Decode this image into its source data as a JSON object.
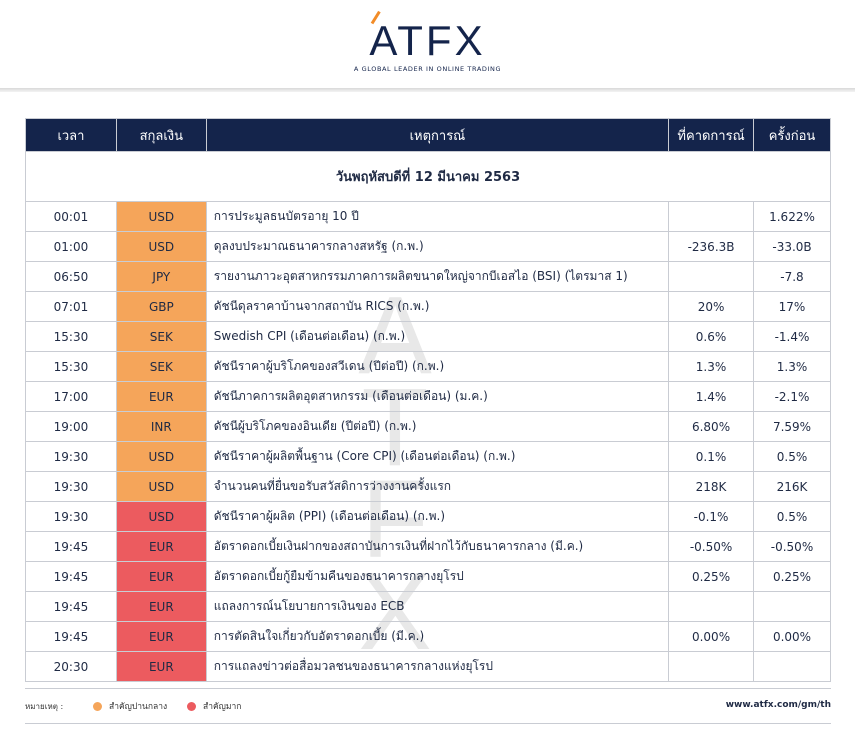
{
  "brand": {
    "logo_text": "ATFX",
    "tagline": "A GLOBAL LEADER IN ONLINE TRADING",
    "accent_color": "#f28c28",
    "navy_color": "#14244b"
  },
  "table": {
    "headers": [
      "เวลา",
      "สกุลเงิน",
      "เหตุการณ์",
      "ที่คาดการณ์",
      "ครั้งก่อน"
    ],
    "date_label": "วันพฤหัสบดีที่ 12 มีนาคม 2563",
    "rows": [
      {
        "time": "00:01",
        "currency": "USD",
        "event": "การประมูลธนบัตรอายุ 10 ปี",
        "forecast": "",
        "previous": "1.622%",
        "importance": "medium"
      },
      {
        "time": "01:00",
        "currency": "USD",
        "event": "ดุลงบประมาณธนาคารกลางสหรัฐ (ก.พ.)",
        "forecast": "-236.3B",
        "previous": "-33.0B",
        "importance": "medium"
      },
      {
        "time": "06:50",
        "currency": "JPY",
        "event": "รายงานภาวะอุตสาหกรรมภาคการผลิตขนาดใหญ่จากบีเอสไอ (BSI) (ไตรมาส 1)",
        "forecast": "",
        "previous": "-7.8",
        "importance": "medium"
      },
      {
        "time": "07:01",
        "currency": "GBP",
        "event": "ดัชนีดุลราคาบ้านจากสถาบัน RICS (ก.พ.)",
        "forecast": "20%",
        "previous": "17%",
        "importance": "medium"
      },
      {
        "time": "15:30",
        "currency": "SEK",
        "event": "Swedish CPI (เดือนต่อเดือน) (ก.พ.)",
        "forecast": "0.6%",
        "previous": "-1.4%",
        "importance": "medium"
      },
      {
        "time": "15:30",
        "currency": "SEK",
        "event": "ดัชนีราคาผู้บริโภคของสวีเดน (ปีต่อปี) (ก.พ.)",
        "forecast": "1.3%",
        "previous": "1.3%",
        "importance": "medium"
      },
      {
        "time": "17:00",
        "currency": "EUR",
        "event": "ดัชนีภาคการผลิตอุตสาหกรรม (เดือนต่อเดือน) (ม.ค.)",
        "forecast": "1.4%",
        "previous": "-2.1%",
        "importance": "medium"
      },
      {
        "time": "19:00",
        "currency": "INR",
        "event": "ดัชนีผู้บริโภคของอินเดีย (ปีต่อปี) (ก.พ.)",
        "forecast": "6.80%",
        "previous": "7.59%",
        "importance": "medium"
      },
      {
        "time": "19:30",
        "currency": "USD",
        "event": "ดัชนีราคาผู้ผลิตพื้นฐาน (Core CPI) (เดือนต่อเดือน) (ก.พ.)",
        "forecast": "0.1%",
        "previous": "0.5%",
        "importance": "medium"
      },
      {
        "time": "19:30",
        "currency": "USD",
        "event": "จำนวนคนที่ยื่นขอรับสวัสดิการว่างงานครั้งแรก",
        "forecast": "218K",
        "previous": "216K",
        "importance": "medium"
      },
      {
        "time": "19:30",
        "currency": "USD",
        "event": "ดัชนีราคาผู้ผลิต (PPI) (เดือนต่อเดือน) (ก.พ.)",
        "forecast": "-0.1%",
        "previous": "0.5%",
        "importance": "high"
      },
      {
        "time": "19:45",
        "currency": "EUR",
        "event": "อัตราดอกเบี้ยเงินฝากของสถาบันการเงินที่ฝากไว้กับธนาคารกลาง (มี.ค.)",
        "forecast": "-0.50%",
        "previous": "-0.50%",
        "importance": "high"
      },
      {
        "time": "19:45",
        "currency": "EUR",
        "event": "อัตราดอกเบี้ยกู้ยืมข้ามคืนของธนาคารกลางยุโรป",
        "forecast": "0.25%",
        "previous": "0.25%",
        "importance": "high"
      },
      {
        "time": "19:45",
        "currency": "EUR",
        "event": "แถลงการณ์นโยบายการเงินของ ECB",
        "forecast": "",
        "previous": "",
        "importance": "high"
      },
      {
        "time": "19:45",
        "currency": "EUR",
        "event": "การตัดสินใจเกี่ยวกับอัตราดอกเบี้ย (มี.ค.)",
        "forecast": "0.00%",
        "previous": "0.00%",
        "importance": "high"
      },
      {
        "time": "20:30",
        "currency": "EUR",
        "event": "การแถลงข่าวต่อสื่อมวลชนของธนาคารกลางแห่งยุโรป",
        "forecast": "",
        "previous": "",
        "importance": "high"
      }
    ]
  },
  "legend": {
    "title": "หมายเหตุ :",
    "medium_label": "สำคัญปานกลาง",
    "high_label": "สำคัญมาก",
    "medium_color": "#f5a55a",
    "high_color": "#ec5b5f"
  },
  "footer": {
    "website": "www.atfx.com/gm/th"
  }
}
